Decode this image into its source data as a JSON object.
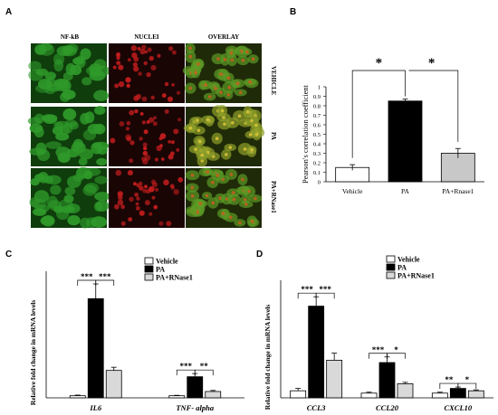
{
  "panel_letters": {
    "a": "A",
    "b": "B",
    "c": "C",
    "d": "D"
  },
  "microscopy": {
    "columns": [
      "NF-kB",
      "NUCLEI",
      "OVERLAY"
    ],
    "rows": [
      "VEHICLE",
      "PA",
      "PA+RNase1"
    ]
  },
  "colors": {
    "vehicle_bar_B": "#ffffff",
    "pa_bar_B": "#000000",
    "parnase_bar_B": "#c8c8c8",
    "vehicle_bar": "#ffffff",
    "pa_bar": "#000000",
    "parnase_bar": "#d9d9d9",
    "green_cells": "#2f9a2a",
    "red_nuclei": "#c21d1d"
  },
  "chart_data": [
    {
      "id": "B",
      "type": "bar",
      "categories": [
        "Vehicle",
        "PA",
        "PA+Rnase1"
      ],
      "values": [
        0.15,
        0.85,
        0.3
      ],
      "errors": [
        0.03,
        0.02,
        0.05
      ],
      "ylabel": "Pearson's correlation coefficient",
      "ylim": [
        0,
        1
      ],
      "yticks": [
        "0",
        "0.1",
        "0.2",
        "0.3",
        "0.4",
        "0.5",
        "0.6",
        "0.7",
        "0.8",
        "0.9",
        "1"
      ],
      "significance": [
        {
          "from": 0,
          "to": 1,
          "label": "*"
        },
        {
          "from": 1,
          "to": 2,
          "label": "*"
        }
      ]
    },
    {
      "id": "C",
      "type": "bar",
      "categories": [
        "IL6",
        "TNF- alpha"
      ],
      "series": [
        {
          "name": "Vehicle",
          "values": [
            1,
            1
          ]
        },
        {
          "name": "PA",
          "values": [
            47,
            10
          ]
        },
        {
          "name": "PA+RNase1",
          "values": [
            13,
            3
          ]
        }
      ],
      "errors": [
        [
          0.3,
          0.2
        ],
        [
          7,
          1.5
        ],
        [
          1.5,
          0.5
        ]
      ],
      "ylabel": "Relative fold change in mRNA levels",
      "ylim": [
        0,
        60
      ],
      "significance": [
        {
          "group": 0,
          "from": 0,
          "to": 1,
          "label": "***"
        },
        {
          "group": 0,
          "from": 1,
          "to": 2,
          "label": "***"
        },
        {
          "group": 1,
          "from": 0,
          "to": 1,
          "label": "***"
        },
        {
          "group": 1,
          "from": 1,
          "to": 2,
          "label": "**"
        }
      ],
      "legend": "top-right"
    },
    {
      "id": "D",
      "type": "bar",
      "categories": [
        "CCL3",
        "CCL20",
        "CXCL10"
      ],
      "series": [
        {
          "name": "Vehicle",
          "values": [
            1.5,
            1,
            1
          ]
        },
        {
          "name": "PA",
          "values": [
            19.5,
            7.5,
            2
          ]
        },
        {
          "name": "PA+RNase1",
          "values": [
            8,
            3,
            1.5
          ]
        }
      ],
      "errors": [
        [
          0.5,
          0.2,
          0.2
        ],
        [
          2,
          1.2,
          0.3
        ],
        [
          1.5,
          0.3,
          0.2
        ]
      ],
      "ylabel": "Relative fold change in mRNA levels",
      "ylim": [
        0,
        25
      ],
      "significance": [
        {
          "group": 0,
          "from": 0,
          "to": 1,
          "label": "***"
        },
        {
          "group": 0,
          "from": 1,
          "to": 2,
          "label": "***"
        },
        {
          "group": 1,
          "from": 0,
          "to": 1,
          "label": "***"
        },
        {
          "group": 1,
          "from": 1,
          "to": 2,
          "label": "*"
        },
        {
          "group": 2,
          "from": 0,
          "to": 1,
          "label": "**"
        },
        {
          "group": 2,
          "from": 1,
          "to": 2,
          "label": "*"
        }
      ],
      "legend": "top-right"
    }
  ]
}
